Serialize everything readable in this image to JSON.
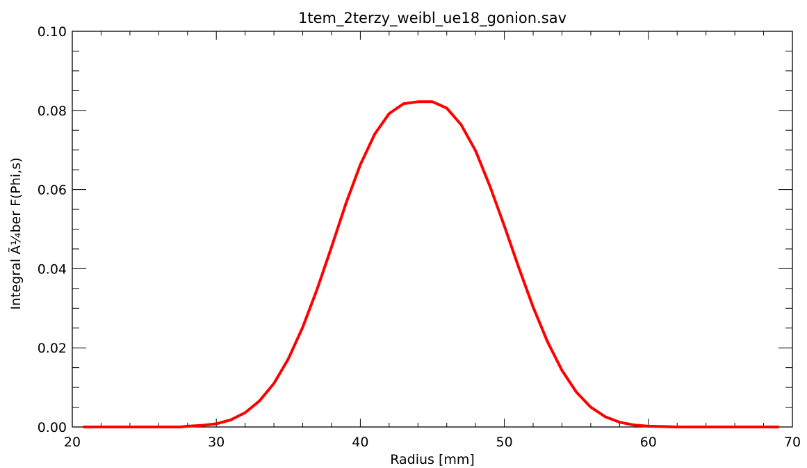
{
  "chart_data": {
    "type": "line",
    "title": "1tem_2terzy_weibl_ue18_gonion.sav",
    "xlabel": "Radius [mm]",
    "ylabel": "Integral Ã¼ber F(Phi,s)",
    "xlim": [
      20,
      70
    ],
    "ylim": [
      0,
      0.1
    ],
    "xticks": [
      20,
      30,
      40,
      50,
      60,
      70
    ],
    "xtick_labels": [
      "20",
      "30",
      "40",
      "50",
      "60",
      "70"
    ],
    "yticks": [
      0,
      0.02,
      0.04,
      0.06,
      0.08,
      0.1
    ],
    "ytick_labels": [
      "0.00",
      "0.02",
      "0.04",
      "0.06",
      "0.08",
      "0.10"
    ],
    "grid": false,
    "series": [
      {
        "color": "#ff0000",
        "x": [
          20.8,
          22,
          24,
          26,
          27.5,
          28,
          29,
          30,
          31,
          32,
          33,
          34,
          35,
          36,
          37,
          38,
          39,
          40,
          41,
          42,
          43,
          44,
          45,
          46,
          47,
          48,
          49,
          50,
          51,
          52,
          53,
          54,
          55,
          56,
          57,
          58,
          59,
          60,
          61,
          62,
          63,
          64,
          66,
          68,
          69
        ],
        "y": [
          0.0,
          0.0,
          0.0,
          0.0,
          0.0,
          0.0002,
          0.0004,
          0.0008,
          0.0018,
          0.0036,
          0.0066,
          0.011,
          0.0172,
          0.0252,
          0.0348,
          0.0455,
          0.0565,
          0.0663,
          0.074,
          0.0792,
          0.0817,
          0.0822,
          0.0822,
          0.0806,
          0.0764,
          0.0698,
          0.0608,
          0.0508,
          0.0403,
          0.0303,
          0.0215,
          0.0143,
          0.0088,
          0.005,
          0.0026,
          0.0012,
          0.0005,
          0.0002,
          0.0001,
          0.0,
          0.0,
          0.0,
          0.0,
          0.0,
          0.0
        ]
      }
    ]
  }
}
